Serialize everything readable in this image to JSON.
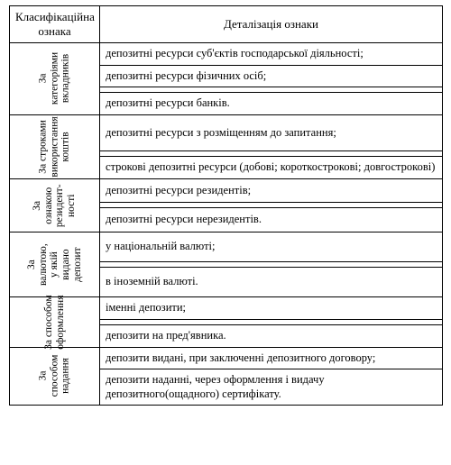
{
  "header": {
    "col1": "Класифікаційна ознака",
    "col2": "Деталізація ознаки"
  },
  "groups": [
    {
      "label": "За\nкатегоріями\nвкладників",
      "rows": [
        "депозитні ресурси суб'єктів господарської діяльності;",
        "депозитні ресурси фізичних осіб;",
        "депозитні ресурси банків."
      ]
    },
    {
      "label": "За строками\nвикористання\nкоштів",
      "rows": [
        "депозитні ресурси з розміщенням до запитання;",
        "строкові депозитні ресурси (добові; короткострокові; довгострокові)"
      ]
    },
    {
      "label": "За\nознакою\nрезидент-\nності",
      "rows": [
        "депозитні ресурси резидентів;",
        "депозитні ресурси нерезидентів."
      ]
    },
    {
      "label": "За\nвалютою,\nу якій\nвидано\nдепозит",
      "rows": [
        "у національній валюті;",
        "в іноземній валюті."
      ]
    },
    {
      "label": "За способом\nоформлення",
      "rows": [
        "іменні депозити;",
        "депозити на пред'явника."
      ]
    },
    {
      "label": "За\nспособом\nнадання",
      "rows": [
        "депозити видані, при заключенні депозитного договору;",
        "депозити наданні, через оформлення і видачу депозитного(ощадного) сертифікату."
      ]
    }
  ],
  "style": {
    "background_color": "#ffffff",
    "border_color": "#000000",
    "header_fontsize": 13,
    "label_fontsize": 11.5,
    "detail_fontsize": 12.5,
    "font_family": "Times New Roman"
  }
}
